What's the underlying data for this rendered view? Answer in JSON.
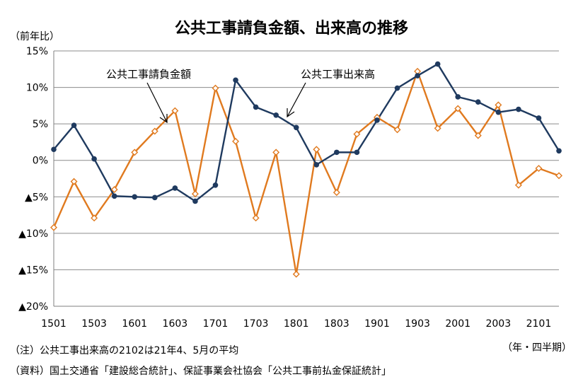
{
  "chart_data": {
    "type": "line",
    "title": "公共工事請負金額、出来高の推移",
    "ylabel": "（前年比）",
    "xlabel": "（年・四半期）",
    "ylim": [
      -20,
      15
    ],
    "y_ticks": [
      15,
      10,
      5,
      0,
      -5,
      -10,
      -15,
      -20
    ],
    "y_tick_labels": [
      "15%",
      "10%",
      "5%",
      "0%",
      "▲5%",
      "▲10%",
      "▲15%",
      "▲20%"
    ],
    "x": [
      "1501",
      "1502",
      "1503",
      "1504",
      "1601",
      "1602",
      "1603",
      "1604",
      "1701",
      "1702",
      "1703",
      "1704",
      "1801",
      "1802",
      "1803",
      "1804",
      "1901",
      "1902",
      "1903",
      "1904",
      "2001",
      "2002",
      "2003",
      "2004",
      "2101",
      "2102"
    ],
    "x_tick_labels": [
      "1501",
      "1503",
      "1601",
      "1603",
      "1701",
      "1703",
      "1801",
      "1803",
      "1901",
      "1903",
      "2001",
      "2003",
      "2101"
    ],
    "grid": true,
    "series": [
      {
        "name": "公共工事請負金額",
        "color": "#E07A1F",
        "marker": "diamond-open",
        "values": [
          -9.2,
          -2.9,
          -7.9,
          -4.0,
          1.1,
          4.0,
          6.8,
          -4.6,
          9.9,
          2.6,
          -7.9,
          1.1,
          -15.6,
          1.5,
          -4.4,
          3.6,
          5.9,
          4.2,
          12.2,
          4.4,
          7.1,
          3.4,
          7.6,
          -3.4,
          -1.1,
          -2.1
        ]
      },
      {
        "name": "公共工事出来高",
        "color": "#1F3A5F",
        "marker": "circle-filled",
        "values": [
          1.5,
          4.8,
          0.2,
          -4.9,
          -5.0,
          -5.1,
          -3.8,
          -5.6,
          -3.4,
          11.0,
          7.3,
          6.2,
          4.5,
          -0.6,
          1.1,
          1.1,
          5.5,
          9.9,
          11.6,
          13.2,
          8.7,
          8.0,
          6.6,
          7.0,
          5.8,
          1.3
        ]
      }
    ],
    "annotations": [
      {
        "text": "公共工事請負金額",
        "points_to_series": 0
      },
      {
        "text": "公共工事出来高",
        "points_to_series": 1
      }
    ]
  },
  "notes": [
    "（注）公共工事出来高の2102は21年4、5月の平均",
    "（資料）国土交通省「建設総合統計」、保証事業会社協会「公共工事前払金保証統計」"
  ],
  "colors": {
    "grid": "#8C8C8C",
    "axis": "#7F7F7F"
  }
}
